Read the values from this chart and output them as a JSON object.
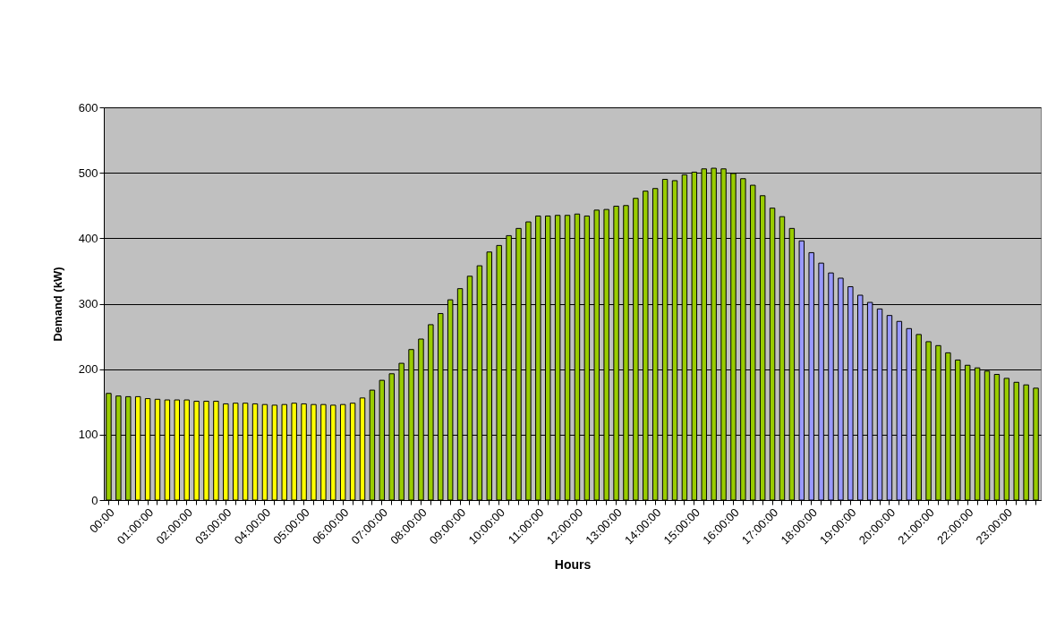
{
  "chart_data": {
    "type": "bar",
    "xlabel": "Hours",
    "ylabel": "Demand (kW)",
    "categories": [
      "00:00",
      null,
      null,
      null,
      "01:00:00",
      null,
      null,
      null,
      "02:00:00",
      null,
      null,
      null,
      "03:00:00",
      null,
      null,
      null,
      "04:00:00",
      null,
      null,
      null,
      "05:00:00",
      null,
      null,
      null,
      "06:00:00",
      null,
      null,
      null,
      "07:00:00",
      null,
      null,
      null,
      "08:00:00",
      null,
      null,
      null,
      "09:00:00",
      null,
      null,
      null,
      "10:00:00",
      null,
      null,
      null,
      "11:00:00",
      null,
      null,
      null,
      "12:00:00",
      null,
      null,
      null,
      "13:00:00",
      null,
      null,
      null,
      "14:00:00",
      null,
      null,
      null,
      "15:00:00",
      null,
      null,
      null,
      "16:00:00",
      null,
      null,
      null,
      "17:00:00",
      null,
      null,
      null,
      "18:00:00",
      null,
      null,
      null,
      "19:00:00",
      null,
      null,
      null,
      "20:00:00",
      null,
      null,
      null,
      "21:00:00",
      null,
      null,
      null,
      "22:00:00",
      null,
      null,
      null,
      "23:00:00",
      null,
      null,
      null
    ],
    "values": [
      163,
      159,
      158,
      158,
      155,
      154,
      153,
      153,
      153,
      151,
      151,
      151,
      147,
      148,
      148,
      147,
      146,
      145,
      146,
      148,
      147,
      146,
      146,
      145,
      146,
      148,
      156,
      168,
      183,
      193,
      209,
      230,
      246,
      268,
      285,
      306,
      323,
      342,
      358,
      379,
      389,
      404,
      415,
      425,
      434,
      434,
      435,
      435,
      437,
      434,
      443,
      444,
      449,
      450,
      461,
      472,
      476,
      490,
      488,
      497,
      501,
      506,
      507,
      506,
      499,
      491,
      481,
      465,
      446,
      433,
      415,
      396,
      378,
      362,
      347,
      339,
      326,
      313,
      302,
      292,
      282,
      273,
      262,
      253,
      242,
      236,
      225,
      214,
      206,
      202,
      197,
      192,
      186,
      180,
      176,
      171
    ],
    "colors": [
      "#99cc00",
      "#99cc00",
      "#99cc00",
      "#ffff00",
      "#ffff00",
      "#ffff00",
      "#ffff00",
      "#ffff00",
      "#ffff00",
      "#ffff00",
      "#ffff00",
      "#ffff00",
      "#ffff00",
      "#ffff00",
      "#ffff00",
      "#ffff00",
      "#ffff00",
      "#ffff00",
      "#ffff00",
      "#ffff00",
      "#ffff00",
      "#ffff00",
      "#ffff00",
      "#ffff00",
      "#ffff00",
      "#ffff00",
      "#ffff00",
      "#99cc00",
      "#99cc00",
      "#99cc00",
      "#99cc00",
      "#99cc00",
      "#99cc00",
      "#99cc00",
      "#99cc00",
      "#99cc00",
      "#99cc00",
      "#99cc00",
      "#99cc00",
      "#99cc00",
      "#99cc00",
      "#99cc00",
      "#99cc00",
      "#99cc00",
      "#99cc00",
      "#99cc00",
      "#99cc00",
      "#99cc00",
      "#99cc00",
      "#99cc00",
      "#99cc00",
      "#99cc00",
      "#99cc00",
      "#99cc00",
      "#99cc00",
      "#99cc00",
      "#99cc00",
      "#99cc00",
      "#99cc00",
      "#99cc00",
      "#99cc00",
      "#99cc00",
      "#99cc00",
      "#99cc00",
      "#99cc00",
      "#99cc00",
      "#99cc00",
      "#99cc00",
      "#99cc00",
      "#99cc00",
      "#99cc00",
      "#9999ff",
      "#9999ff",
      "#9999ff",
      "#9999ff",
      "#9999ff",
      "#9999ff",
      "#9999ff",
      "#9999ff",
      "#9999ff",
      "#9999ff",
      "#9999ff",
      "#9999ff",
      "#99cc00",
      "#99cc00",
      "#99cc00",
      "#99cc00",
      "#99cc00",
      "#99cc00",
      "#99cc00",
      "#99cc00",
      "#99cc00",
      "#99cc00",
      "#99cc00",
      "#99cc00",
      "#99cc00"
    ],
    "ylim": [
      0,
      600
    ],
    "yticks": [
      0,
      100,
      200,
      300,
      400,
      500,
      600
    ],
    "grid": "y"
  }
}
